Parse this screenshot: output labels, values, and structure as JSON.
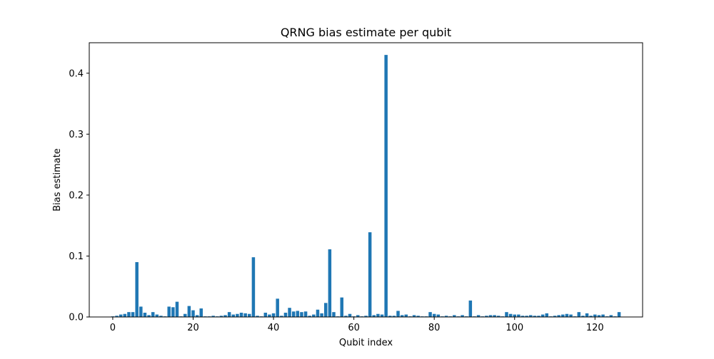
{
  "chart_data": {
    "type": "bar",
    "title": "QRNG bias estimate per qubit",
    "xlabel": "Qubit index",
    "ylabel": "Bias estimate",
    "xlim": [
      -5.85,
      131.85
    ],
    "ylim": [
      0,
      0.45
    ],
    "xticks": [
      0,
      20,
      40,
      60,
      80,
      100,
      120
    ],
    "yticks": [
      0.0,
      0.1,
      0.2,
      0.3,
      0.4
    ],
    "grid": false,
    "legend": "none",
    "bar_color": "#1f77b4",
    "x": [
      0,
      1,
      2,
      3,
      4,
      5,
      6,
      7,
      8,
      9,
      10,
      11,
      12,
      13,
      14,
      15,
      16,
      17,
      18,
      19,
      20,
      21,
      22,
      23,
      24,
      25,
      26,
      27,
      28,
      29,
      30,
      31,
      32,
      33,
      34,
      35,
      36,
      37,
      38,
      39,
      40,
      41,
      42,
      43,
      44,
      45,
      46,
      47,
      48,
      49,
      50,
      51,
      52,
      53,
      54,
      55,
      56,
      57,
      58,
      59,
      60,
      61,
      62,
      63,
      64,
      65,
      66,
      67,
      68,
      69,
      70,
      71,
      72,
      73,
      74,
      75,
      76,
      77,
      78,
      79,
      80,
      81,
      82,
      83,
      84,
      85,
      86,
      87,
      88,
      89,
      90,
      91,
      92,
      93,
      94,
      95,
      96,
      97,
      98,
      99,
      100,
      101,
      102,
      103,
      104,
      105,
      106,
      107,
      108,
      109,
      110,
      111,
      112,
      113,
      114,
      115,
      116,
      117,
      118,
      119,
      120,
      121,
      122,
      123,
      124,
      125,
      126
    ],
    "values": [
      0.001,
      0.002,
      0.004,
      0.005,
      0.008,
      0.008,
      0.09,
      0.017,
      0.007,
      0.003,
      0.008,
      0.004,
      0.002,
      0.001,
      0.017,
      0.016,
      0.025,
      0.001,
      0.005,
      0.018,
      0.011,
      0.003,
      0.014,
      0.001,
      0.001,
      0.002,
      0.001,
      0.002,
      0.003,
      0.008,
      0.004,
      0.005,
      0.007,
      0.006,
      0.005,
      0.098,
      0.002,
      0.001,
      0.007,
      0.004,
      0.006,
      0.03,
      0.002,
      0.007,
      0.015,
      0.009,
      0.01,
      0.008,
      0.009,
      0.002,
      0.004,
      0.012,
      0.006,
      0.023,
      0.111,
      0.008,
      0.001,
      0.032,
      0.002,
      0.005,
      0.001,
      0.003,
      0.001,
      0.002,
      0.139,
      0.003,
      0.005,
      0.004,
      0.43,
      0.002,
      0.002,
      0.01,
      0.003,
      0.004,
      0.001,
      0.003,
      0.002,
      0.001,
      0.001,
      0.008,
      0.005,
      0.004,
      0.001,
      0.002,
      0.001,
      0.003,
      0.001,
      0.003,
      0.001,
      0.027,
      0.001,
      0.003,
      0.001,
      0.002,
      0.003,
      0.003,
      0.002,
      0.001,
      0.008,
      0.005,
      0.004,
      0.004,
      0.002,
      0.002,
      0.003,
      0.002,
      0.002,
      0.004,
      0.006,
      0.001,
      0.002,
      0.003,
      0.004,
      0.005,
      0.004,
      0.001,
      0.008,
      0.002,
      0.006,
      0.002,
      0.004,
      0.003,
      0.004,
      0.001,
      0.003,
      0.001,
      0.008
    ]
  }
}
